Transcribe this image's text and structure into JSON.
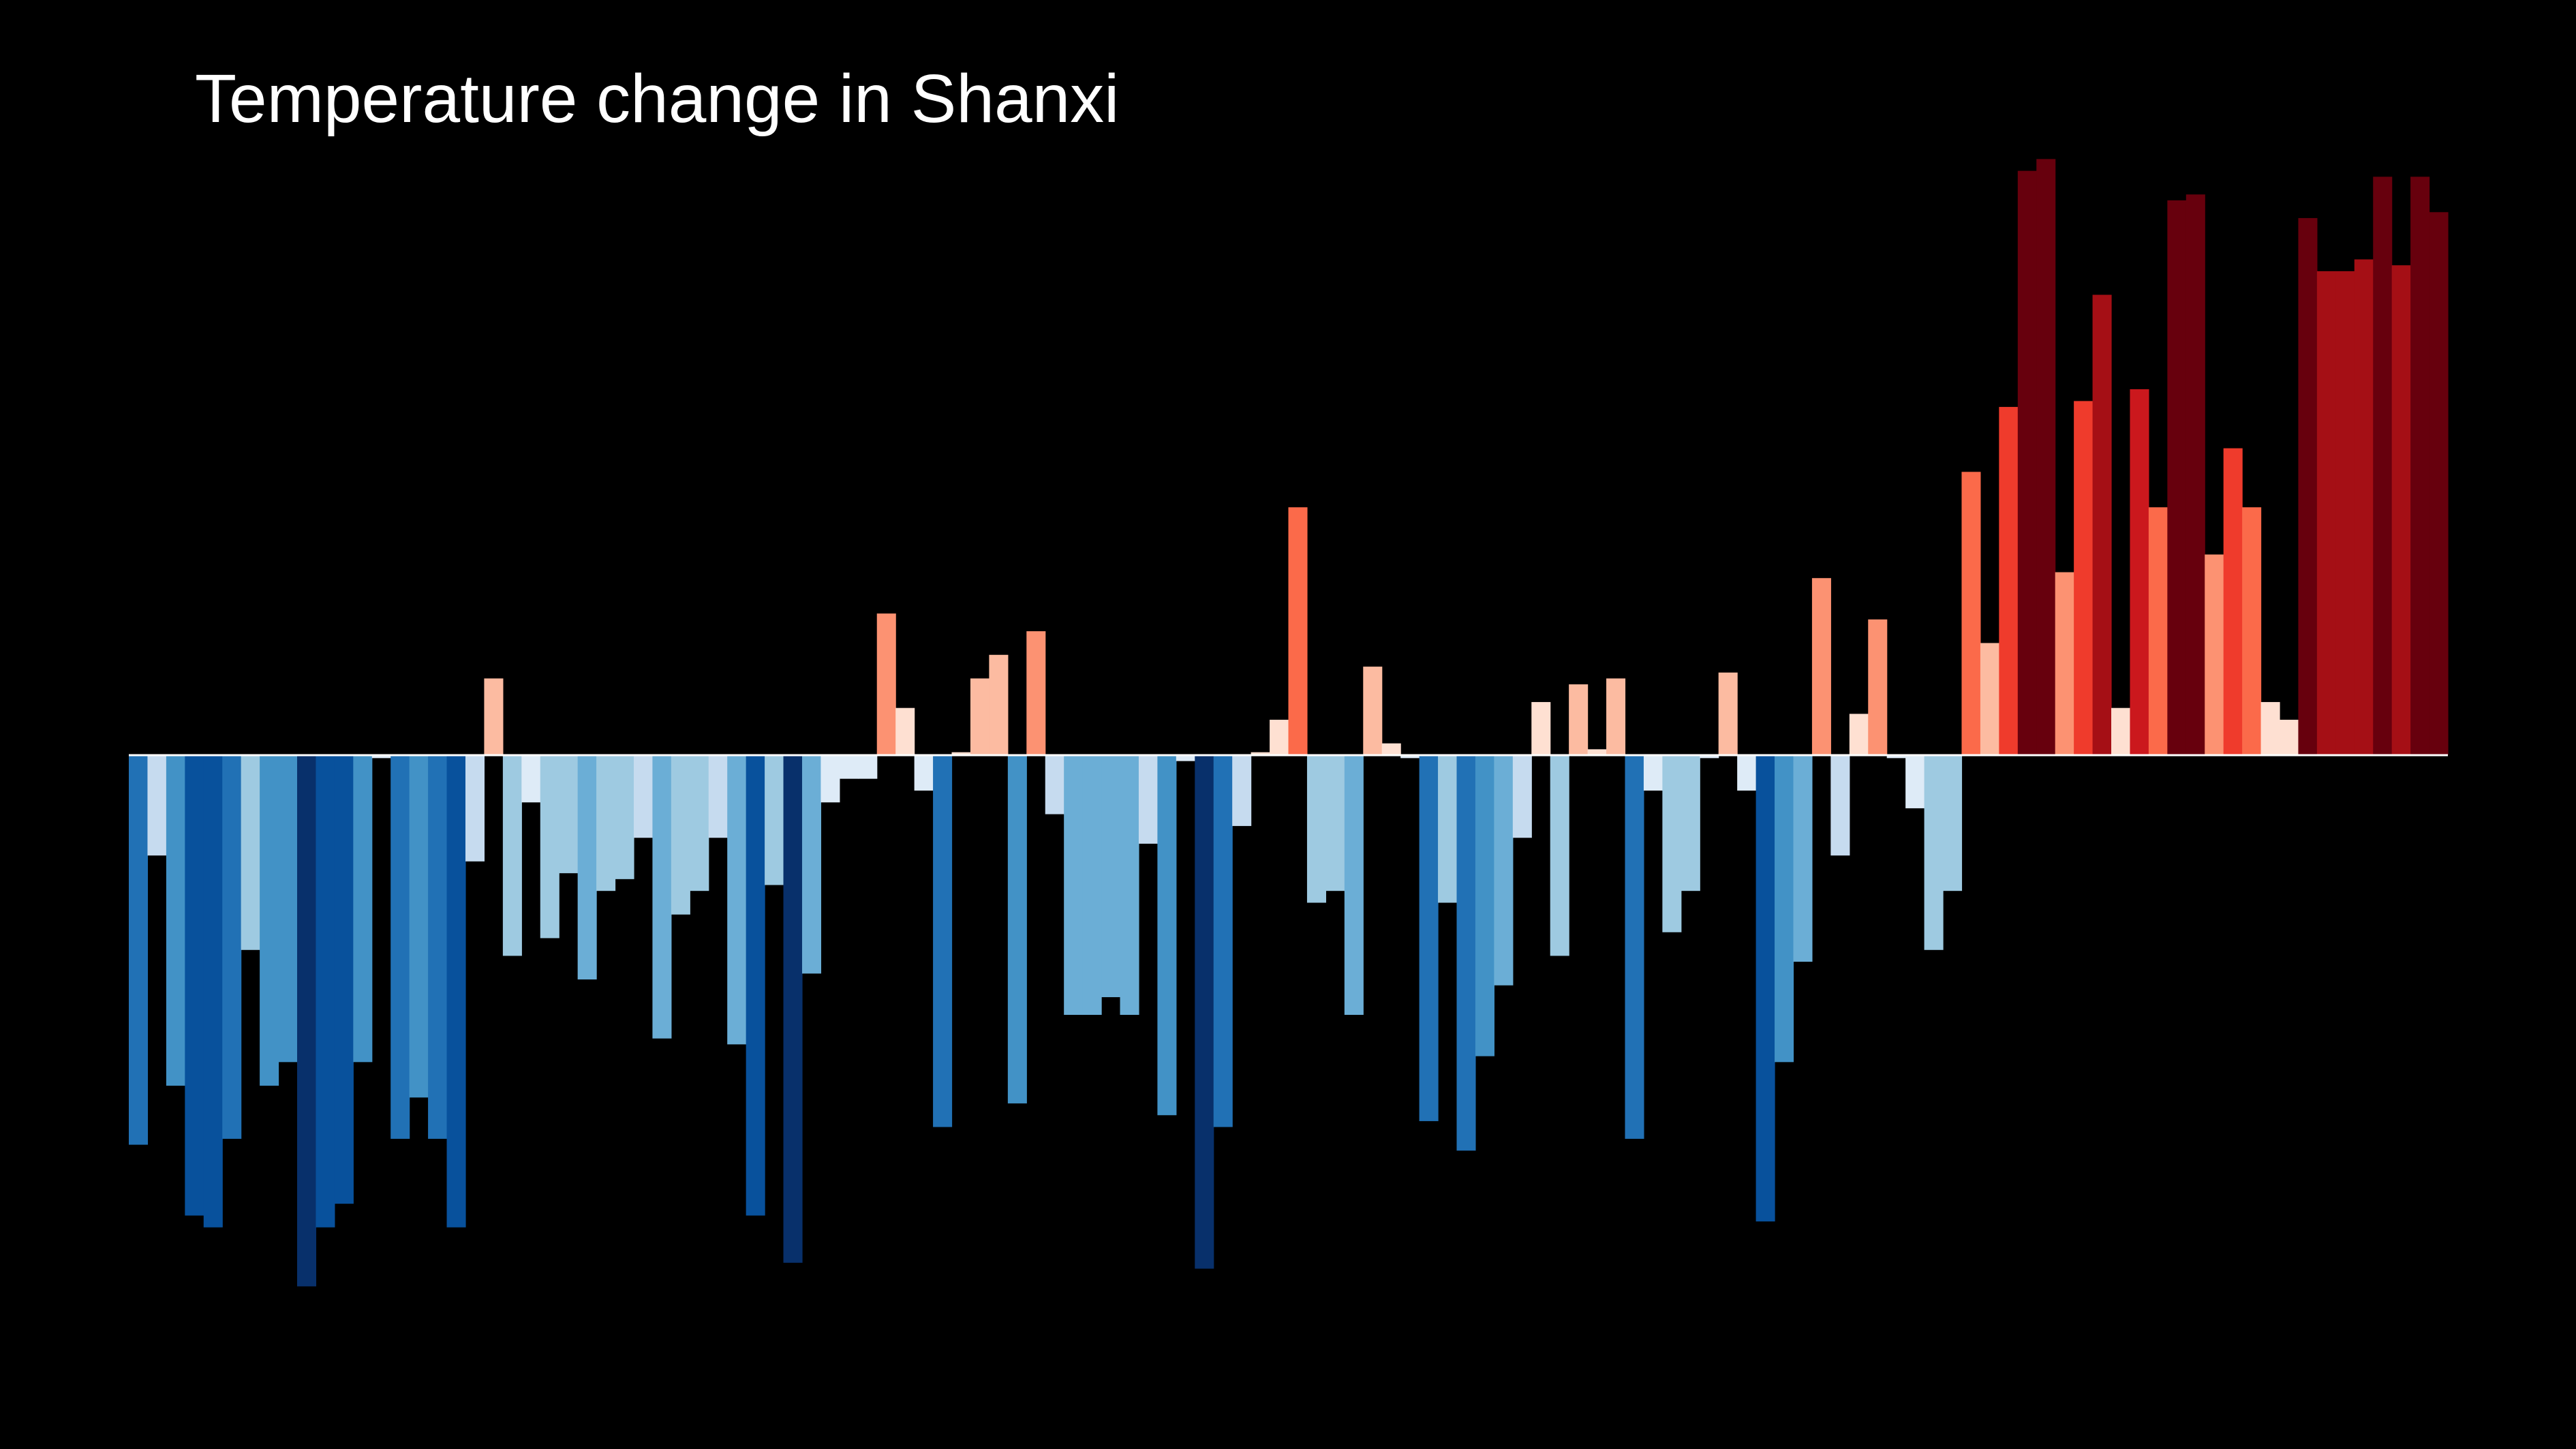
{
  "chart_data": {
    "type": "bar",
    "title": "Temperature change in Shanxi",
    "xlabel": "",
    "ylabel": "",
    "ylim": [
      -1.0,
      1.0
    ],
    "grid": false,
    "legend": "none",
    "color_scale": {
      "negative": [
        "#deebf7",
        "#c6dbef",
        "#9ecae1",
        "#6baed6",
        "#4292c6",
        "#2171b5",
        "#08519c",
        "#08306b"
      ],
      "positive": [
        "#fee0d2",
        "#fcbba1",
        "#fc9272",
        "#fb6a4a",
        "#ef3b2c",
        "#cb181d",
        "#a50f15",
        "#67000d"
      ],
      "zero_line": "#ffffff",
      "background": "#000000"
    },
    "values": [
      -0.66,
      -0.17,
      -0.56,
      -0.78,
      -0.8,
      -0.65,
      -0.33,
      -0.56,
      -0.52,
      -0.9,
      -0.8,
      -0.76,
      -0.52,
      -0.005,
      -0.65,
      -0.58,
      -0.65,
      -0.8,
      -0.18,
      0.13,
      -0.34,
      -0.08,
      -0.31,
      -0.2,
      -0.38,
      -0.23,
      -0.21,
      -0.14,
      -0.48,
      -0.27,
      -0.23,
      -0.14,
      -0.49,
      -0.78,
      -0.22,
      -0.86,
      -0.37,
      -0.08,
      -0.04,
      -0.04,
      0.24,
      0.08,
      -0.06,
      -0.63,
      0.005,
      0.13,
      0.17,
      -0.59,
      0.21,
      -0.1,
      -0.44,
      -0.44,
      -0.41,
      -0.44,
      -0.15,
      -0.61,
      -0.01,
      -0.87,
      -0.63,
      -0.12,
      0.005,
      0.06,
      0.42,
      -0.25,
      -0.23,
      -0.44,
      0.15,
      0.02,
      -0.005,
      -0.62,
      -0.25,
      -0.67,
      -0.51,
      -0.39,
      -0.14,
      0.09,
      -0.34,
      0.12,
      0.01,
      0.13,
      -0.65,
      -0.06,
      -0.3,
      -0.23,
      -0.005,
      0.14,
      -0.06,
      -0.79,
      -0.52,
      -0.35,
      0.3,
      -0.17,
      0.07,
      0.23,
      -0.005,
      -0.09,
      -0.33,
      -0.23,
      0.48,
      0.19,
      0.59,
      0.99,
      1.01,
      0.31,
      0.6,
      0.78,
      0.08,
      0.62,
      0.42,
      0.94,
      0.95,
      0.34,
      0.52,
      0.42,
      0.09,
      0.06,
      0.91,
      0.82,
      0.82,
      0.84,
      0.98,
      0.83,
      0.98,
      0.92
    ]
  }
}
